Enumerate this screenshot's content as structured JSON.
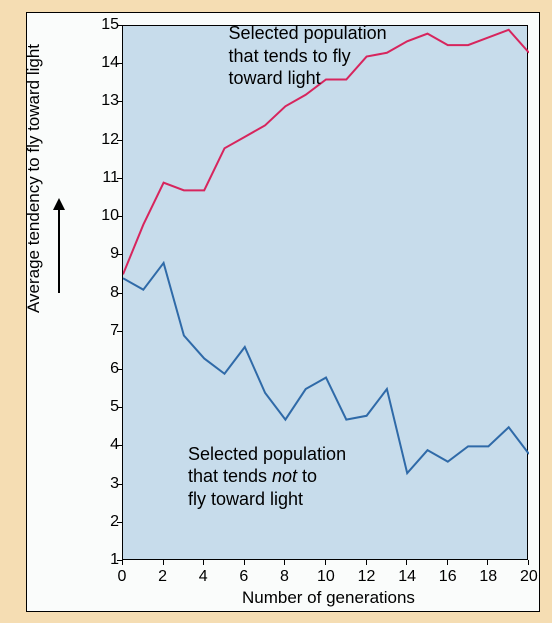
{
  "chart": {
    "type": "line",
    "background_outer": "#f5ddb3",
    "background_panel": "#fafcfb",
    "plot_bg": "#c7dceb",
    "border_color": "#000000",
    "xlim": [
      0,
      20
    ],
    "ylim": [
      1,
      15
    ],
    "x_ticks": [
      0,
      2,
      4,
      6,
      8,
      10,
      12,
      14,
      16,
      18,
      20
    ],
    "y_ticks": [
      1,
      2,
      3,
      4,
      5,
      6,
      7,
      8,
      9,
      10,
      11,
      12,
      13,
      14,
      15
    ],
    "xlabel": "Number of generations",
    "ylabel": "Average tendency to fly toward light",
    "label_fontsize": 17,
    "tick_fontsize": 16,
    "series": [
      {
        "name": "toward-light",
        "color": "#d7255d",
        "line_width": 2,
        "x": [
          0,
          1,
          2,
          3,
          4,
          5,
          6,
          7,
          8,
          9,
          10,
          11,
          12,
          13,
          14,
          15,
          16,
          17,
          18,
          19,
          20
        ],
        "y": [
          8.5,
          9.8,
          10.9,
          10.7,
          10.7,
          11.8,
          12.1,
          12.4,
          12.9,
          13.2,
          13.6,
          13.6,
          14.2,
          14.3,
          14.6,
          14.8,
          14.5,
          14.5,
          14.7,
          14.9,
          14.3
        ],
        "annotation": "Selected population\nthat tends to fly\ntoward light",
        "annotation_pos": [
          5.2,
          15.1
        ]
      },
      {
        "name": "not-toward-light",
        "color": "#2f6aa8",
        "line_width": 2,
        "x": [
          0,
          1,
          2,
          3,
          4,
          5,
          6,
          7,
          8,
          9,
          10,
          11,
          12,
          13,
          14,
          15,
          16,
          17,
          18,
          19,
          20
        ],
        "y": [
          8.4,
          8.1,
          8.8,
          6.9,
          6.3,
          5.9,
          6.6,
          5.4,
          4.7,
          5.5,
          5.8,
          4.7,
          4.8,
          5.5,
          3.3,
          3.9,
          3.6,
          4.0,
          4.0,
          4.5,
          3.8
        ],
        "annotation": "Selected population\nthat tends not to\nfly toward light",
        "annotation_pos": [
          3.2,
          4.1
        ]
      }
    ],
    "arrow": {
      "length": 90,
      "stroke": "#000000",
      "stroke_width": 2
    }
  }
}
